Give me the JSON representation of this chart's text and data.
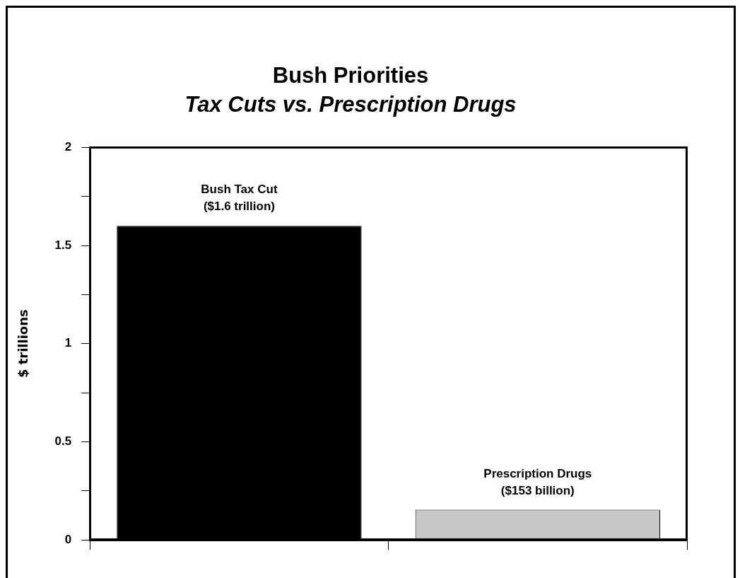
{
  "chart_data": {
    "type": "bar",
    "title": "Bush Priorities",
    "subtitle": "Tax Cuts vs. Prescription Drugs",
    "ylabel": "$ trillions",
    "categories": [
      null,
      null
    ],
    "values": [
      1.6,
      0.153
    ],
    "colors": [
      "#000000",
      "#c8c8c8"
    ],
    "annotations": [
      {
        "text": "Bush Tax Cut\n($1.6 trillion)",
        "y": 1.6
      },
      {
        "text": "Prescription Drugs\n($153 billion)",
        "y": 0.153
      }
    ],
    "ylim": [
      0,
      2
    ],
    "yticks": [
      0,
      {
        "value": 0.25,
        "label": null
      },
      0.5,
      {
        "value": 0.75,
        "label": null
      },
      1,
      {
        "value": 1.25,
        "label": null
      },
      1.5,
      {
        "value": 1.75,
        "label": null
      },
      2
    ],
    "grid": false,
    "legend": false
  }
}
